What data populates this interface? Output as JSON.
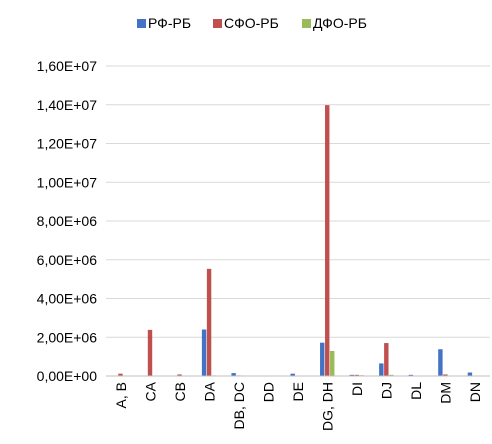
{
  "chart_data": {
    "type": "bar",
    "categories": [
      "A, B",
      "CA",
      "CB",
      "DA",
      "DB, DC",
      "DD",
      "DE",
      "DG, DH",
      "DI",
      "DJ",
      "DL",
      "DM",
      "DN"
    ],
    "series": [
      {
        "name": "РФ-РБ",
        "color": "#4472c4",
        "values": [
          20000,
          10000,
          20000,
          2400000,
          150000,
          10000,
          120000,
          1720000,
          60000,
          650000,
          60000,
          1380000,
          180000
        ]
      },
      {
        "name": "СФО-РБ",
        "color": "#c0504d",
        "values": [
          120000,
          2380000,
          80000,
          5530000,
          30000,
          10000,
          20000,
          13980000,
          60000,
          1700000,
          20000,
          80000,
          10000
        ]
      },
      {
        "name": "ДФО-РБ",
        "color": "#9bbb59",
        "values": [
          10000,
          10000,
          10000,
          30000,
          10000,
          10000,
          10000,
          1290000,
          40000,
          60000,
          10000,
          20000,
          10000
        ]
      }
    ],
    "yticks": [
      "0,00E+00",
      "2,00E+06",
      "4,00E+06",
      "6,00E+06",
      "8,00E+06",
      "1,00E+07",
      "1,20E+07",
      "1,40E+07",
      "1,60E+07"
    ],
    "ylim": [
      0,
      16000000
    ],
    "grid": true,
    "legend": "top-center"
  }
}
